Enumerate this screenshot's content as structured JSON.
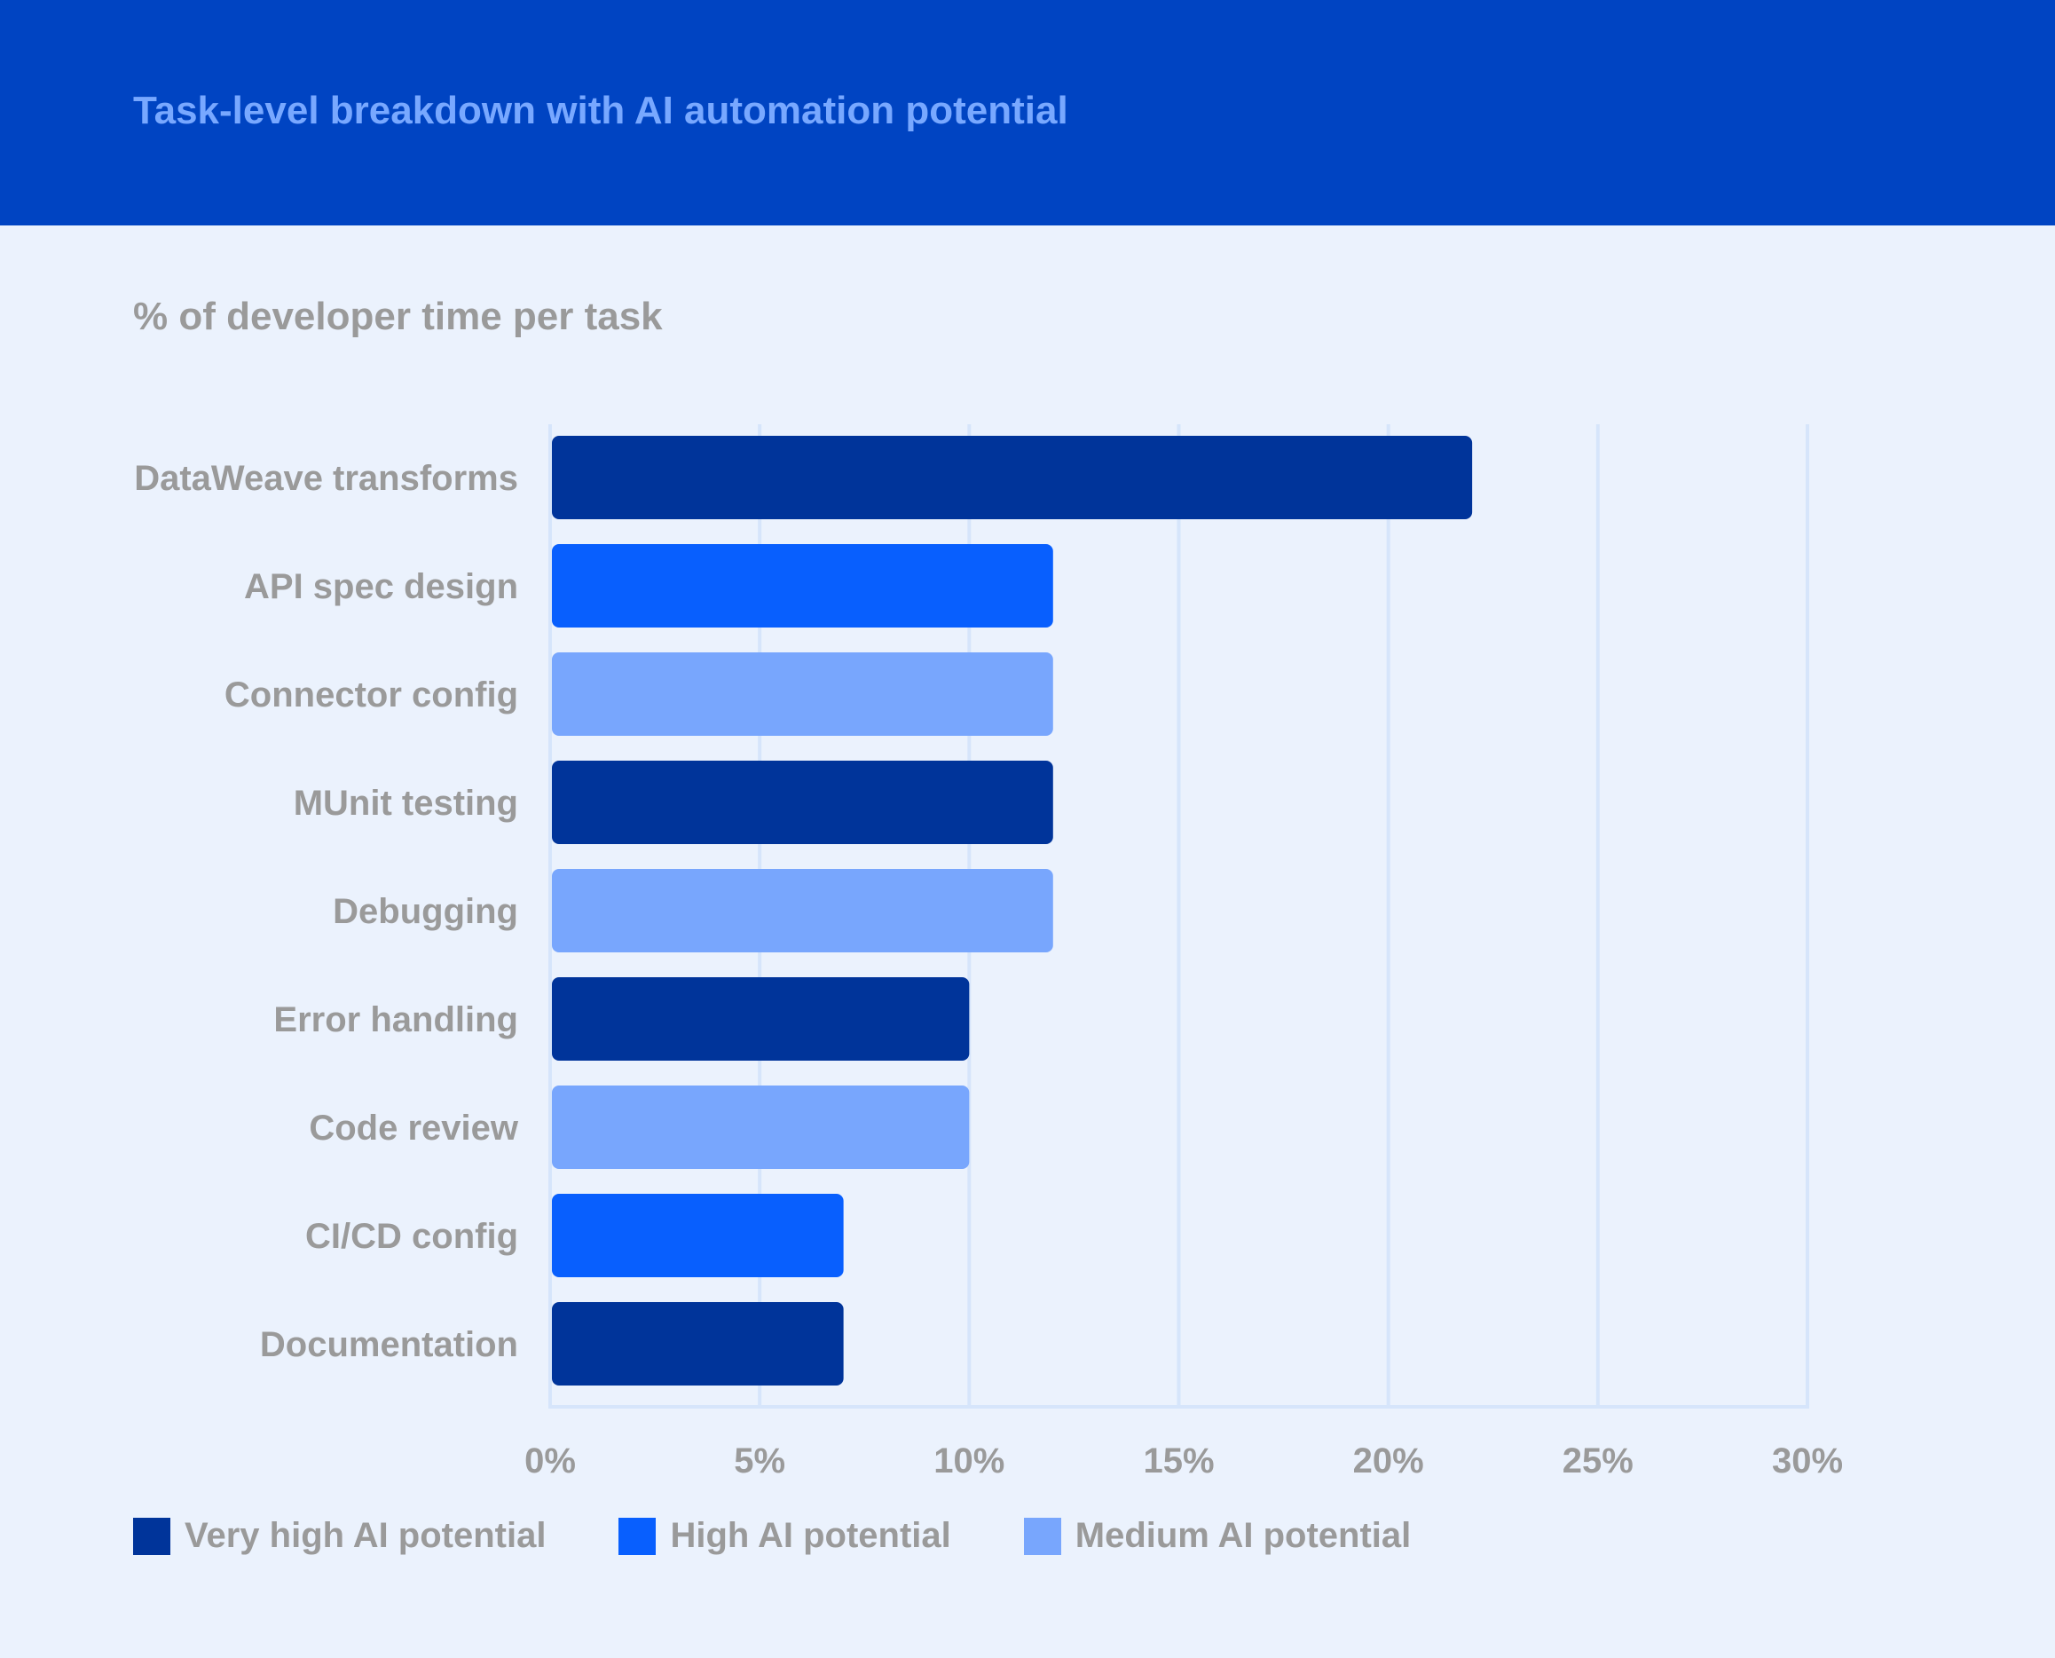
{
  "header": {
    "title": "Task-level breakdown with AI automation potential"
  },
  "subtitle": "% of developer time per task",
  "colors": {
    "very_high": "#00349a",
    "high": "#085ffe",
    "medium": "#78a6fd",
    "grid": "#d6e5fb",
    "text": "#9a9a9a"
  },
  "legend": [
    {
      "label": "Very high AI potential",
      "color": "#00349a"
    },
    {
      "label": "High AI potential",
      "color": "#085ffe"
    },
    {
      "label": "Medium AI potential",
      "color": "#78a6fd"
    }
  ],
  "chart_data": {
    "type": "bar",
    "orientation": "horizontal",
    "title": "% of developer time per task",
    "categories": [
      "DataWeave transforms",
      "API spec design",
      "Connector config",
      "MUnit testing",
      "Debugging",
      "Error handling",
      "Code review",
      "CI/CD config",
      "Documentation"
    ],
    "values": [
      22,
      12,
      12,
      12,
      12,
      10,
      10,
      7,
      7
    ],
    "potential": [
      "Very high AI potential",
      "High AI potential",
      "Medium AI potential",
      "Very high AI potential",
      "Medium AI potential",
      "Very high AI potential",
      "Medium AI potential",
      "High AI potential",
      "Very high AI potential"
    ],
    "xlim": [
      0,
      30
    ],
    "xticks": [
      "0%",
      "5%",
      "10%",
      "15%",
      "20%",
      "25%",
      "30%"
    ],
    "grid": true,
    "legend_position": "bottom-left"
  }
}
